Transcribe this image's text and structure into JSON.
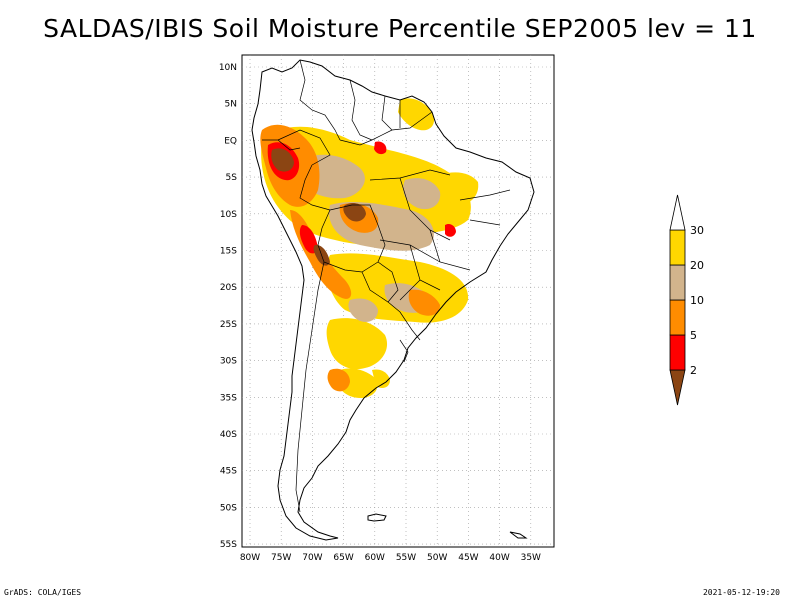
{
  "title": "SALDAS/IBIS Soil Moisture Percentile SEP2005 lev = 11",
  "footer": {
    "left": "GrADS: COLA/IGES",
    "right": "2021-05-12-19:20"
  },
  "lat_labels": [
    "10N",
    "5N",
    "EQ",
    "5S",
    "10S",
    "15S",
    "20S",
    "25S",
    "30S",
    "35S",
    "40S",
    "45S",
    "50S",
    "55S"
  ],
  "lon_labels": [
    "80W",
    "75W",
    "70W",
    "65W",
    "60W",
    "55W",
    "50W",
    "45W",
    "40W",
    "35W"
  ],
  "colorbar": {
    "labels": [
      "2",
      "5",
      "10",
      "20",
      "30"
    ],
    "colors": [
      "#8b4513",
      "#ff0000",
      "#ff8c00",
      "#d2b48c",
      "#ffd700",
      "#ffffff"
    ]
  },
  "map_colors": {
    "brown": "#8b4513",
    "red": "#ff0000",
    "orange": "#ff8c00",
    "tan": "#d2b48c",
    "yellow": "#ffd700",
    "light_yellow": "#ffec80"
  }
}
